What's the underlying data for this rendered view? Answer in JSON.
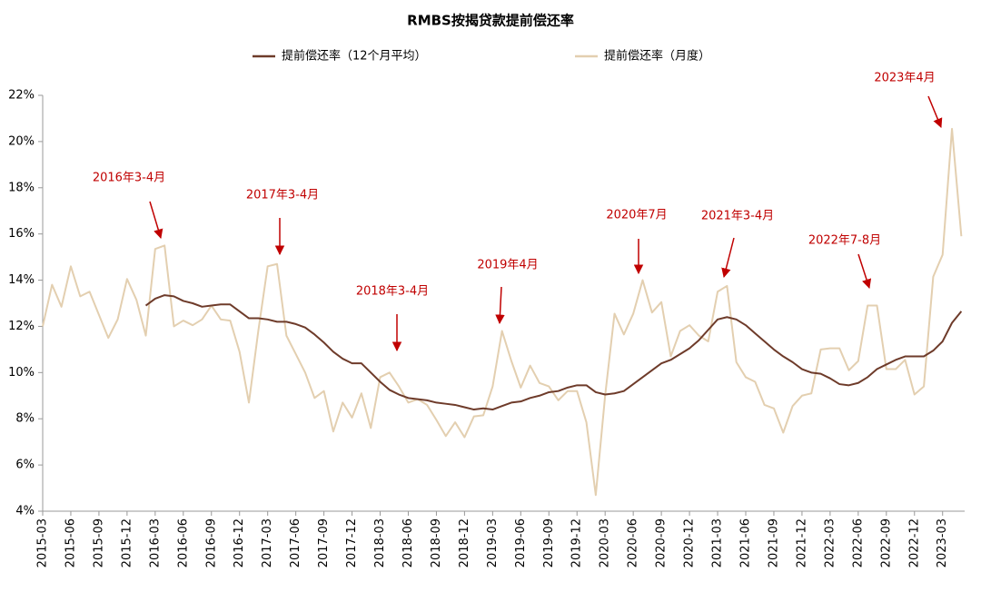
{
  "chart_data": {
    "type": "line",
    "title": "RMBS按揭贷款提前偿还率",
    "categories": [
      "2015-03",
      null,
      null,
      "2015-06",
      null,
      null,
      "2015-09",
      null,
      null,
      "2015-12",
      null,
      null,
      "2016-03",
      null,
      null,
      "2016-06",
      null,
      null,
      "2016-09",
      null,
      null,
      "2016-12",
      null,
      null,
      "2017-03",
      null,
      null,
      "2017-06",
      null,
      null,
      "2017-09",
      null,
      null,
      "2017-12",
      null,
      null,
      "2018-03",
      null,
      null,
      "2018-06",
      null,
      null,
      "2018-09",
      null,
      null,
      "2018-12",
      null,
      null,
      "2019-03",
      null,
      null,
      "2019-06",
      null,
      null,
      "2019-09",
      null,
      null,
      "2019-12",
      null,
      null,
      "2020-03",
      null,
      null,
      "2020-06",
      null,
      null,
      "2020-09",
      null,
      null,
      "2020-12",
      null,
      null,
      "2021-03",
      null,
      null,
      "2021-06",
      null,
      null,
      "2021-09",
      null,
      null,
      "2021-12",
      null,
      null,
      "2022-03",
      null,
      null,
      "2022-06",
      null,
      null,
      "2022-09",
      null,
      null,
      "2022-12",
      null,
      null,
      "2023-03",
      null,
      null
    ],
    "series": [
      {
        "name": "提前偿还率（12个月平均）",
        "color": "#6e3b2a",
        "width": 2,
        "values": [
          null,
          null,
          null,
          null,
          null,
          null,
          null,
          null,
          null,
          null,
          null,
          12.9,
          13.2,
          13.35,
          13.3,
          13.1,
          13.0,
          12.85,
          12.9,
          12.95,
          12.95,
          12.65,
          12.35,
          12.35,
          12.3,
          12.2,
          12.2,
          12.1,
          11.95,
          11.65,
          11.3,
          10.9,
          10.6,
          10.4,
          10.4,
          10.0,
          9.6,
          9.25,
          9.05,
          8.9,
          8.85,
          8.8,
          8.7,
          8.65,
          8.6,
          8.5,
          8.4,
          8.45,
          8.4,
          8.55,
          8.7,
          8.75,
          8.9,
          9.0,
          9.15,
          9.2,
          9.35,
          9.45,
          9.45,
          9.15,
          9.05,
          9.1,
          9.2,
          9.5,
          9.8,
          10.1,
          10.4,
          10.55,
          10.8,
          11.05,
          11.4,
          11.85,
          12.3,
          12.4,
          12.3,
          12.05,
          11.7,
          11.35,
          11.0,
          10.7,
          10.45,
          10.15,
          10.0,
          9.95,
          9.75,
          9.5,
          9.45,
          9.55,
          9.8,
          10.15,
          10.35,
          10.55,
          10.7,
          10.7,
          10.7,
          10.95,
          11.35,
          12.15,
          12.65
        ]
      },
      {
        "name": "提前偿还率（月度）",
        "color": "#e3cfb0",
        "width": 2,
        "values": [
          12.0,
          13.8,
          12.85,
          14.6,
          13.3,
          13.5,
          12.5,
          11.5,
          12.3,
          14.05,
          13.15,
          11.6,
          15.35,
          15.5,
          12.0,
          12.25,
          12.05,
          12.3,
          12.9,
          12.3,
          12.25,
          10.9,
          8.7,
          11.8,
          14.6,
          14.7,
          11.6,
          10.8,
          10.0,
          8.9,
          9.2,
          7.45,
          8.7,
          8.05,
          9.1,
          7.6,
          9.8,
          10.0,
          9.4,
          8.7,
          8.85,
          8.6,
          7.95,
          7.25,
          7.85,
          7.2,
          8.1,
          8.15,
          9.4,
          11.8,
          10.5,
          9.35,
          10.3,
          9.55,
          9.4,
          8.8,
          9.2,
          9.2,
          7.85,
          4.7,
          9.0,
          12.55,
          11.65,
          12.55,
          14.0,
          12.6,
          13.05,
          10.7,
          11.8,
          12.05,
          11.6,
          11.35,
          13.5,
          13.75,
          10.45,
          9.8,
          9.6,
          8.6,
          8.45,
          7.4,
          8.55,
          9.0,
          9.1,
          11.0,
          11.05,
          11.05,
          10.1,
          10.5,
          12.9,
          12.9,
          10.15,
          10.15,
          10.55,
          9.05,
          9.4,
          14.15,
          15.1,
          20.55,
          15.9
        ]
      }
    ],
    "ylim": [
      4,
      22
    ],
    "yticks": [
      {
        "value": 4,
        "label": "4%"
      },
      {
        "value": 6,
        "label": "6%"
      },
      {
        "value": 8,
        "label": "8%"
      },
      {
        "value": 10,
        "label": "10%"
      },
      {
        "value": 12,
        "label": "12%"
      },
      {
        "value": 14,
        "label": "14%"
      },
      {
        "value": 16,
        "label": "16%"
      },
      {
        "value": 18,
        "label": "18%"
      },
      {
        "value": 20,
        "label": "20%"
      },
      {
        "value": 22,
        "label": "22%"
      }
    ],
    "grid": false,
    "legend": "top",
    "annotation_color": "#c00000",
    "annotations": [
      "2016年3-4月",
      "2017年3-4月",
      "2018年3-4月",
      "2019年4月",
      "2020年7月",
      "2021年3-4月",
      "2022年7-8月",
      "2023年4月"
    ]
  }
}
